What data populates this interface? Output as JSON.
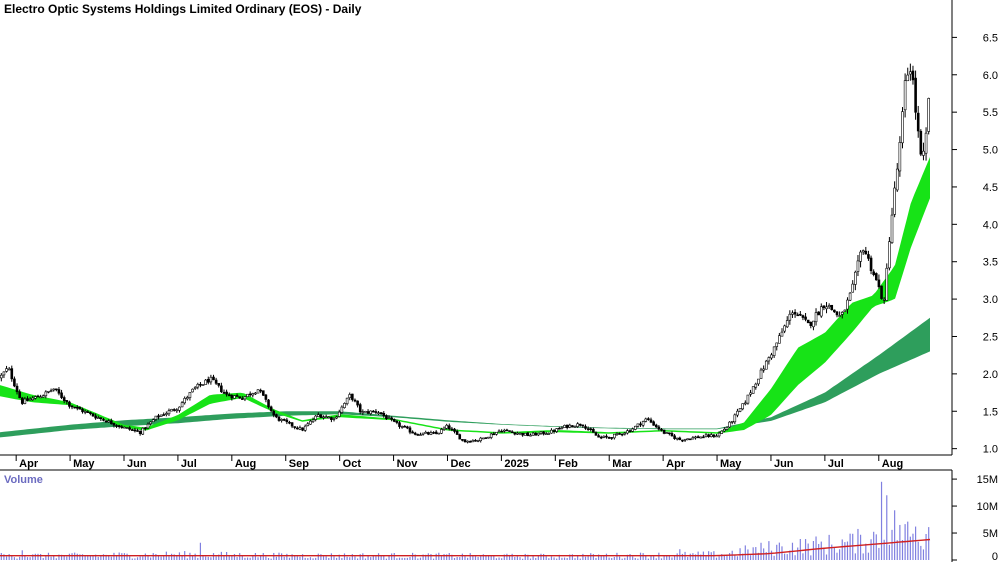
{
  "chart_data": [
    {
      "type": "candlestick",
      "title": "Electro Optic Systems Holdings Limited Ordinary (EOS) - Daily",
      "y_ticks": [
        "6.5",
        "6.0",
        "5.5",
        "5.0",
        "4.5",
        "4.0",
        "3.5",
        "3.0",
        "2.5",
        "2.0",
        "1.5",
        "1.0"
      ],
      "ylim": [
        0.9,
        6.85
      ],
      "x_ticks": [
        "Apr",
        "May",
        "Jun",
        "Jul",
        "Aug",
        "Sep",
        "Oct",
        "Nov",
        "Dec",
        "2025",
        "Feb",
        "Mar",
        "Apr",
        "May",
        "Jun",
        "Jul",
        "Aug"
      ],
      "x_tick_times": [
        0,
        1,
        2,
        3,
        4,
        5,
        6,
        7,
        8,
        9,
        10,
        11,
        12,
        13,
        14,
        15,
        16
      ],
      "xlim": [
        -0.3,
        16.95
      ],
      "price_keypoints": [
        [
          -0.3,
          1.95
        ],
        [
          -0.15,
          2.08
        ],
        [
          0.1,
          1.62
        ],
        [
          0.5,
          1.72
        ],
        [
          0.7,
          1.8
        ],
        [
          1.0,
          1.58
        ],
        [
          1.5,
          1.42
        ],
        [
          2.0,
          1.28
        ],
        [
          2.3,
          1.22
        ],
        [
          2.6,
          1.42
        ],
        [
          3.0,
          1.55
        ],
        [
          3.3,
          1.8
        ],
        [
          3.6,
          1.93
        ],
        [
          3.9,
          1.72
        ],
        [
          4.2,
          1.68
        ],
        [
          4.5,
          1.8
        ],
        [
          4.8,
          1.42
        ],
        [
          5.0,
          1.35
        ],
        [
          5.3,
          1.25
        ],
        [
          5.6,
          1.45
        ],
        [
          5.9,
          1.4
        ],
        [
          6.2,
          1.72
        ],
        [
          6.4,
          1.48
        ],
        [
          6.7,
          1.5
        ],
        [
          7.0,
          1.35
        ],
        [
          7.4,
          1.2
        ],
        [
          7.8,
          1.2
        ],
        [
          8.0,
          1.3
        ],
        [
          8.3,
          1.1
        ],
        [
          8.6,
          1.12
        ],
        [
          9.0,
          1.25
        ],
        [
          9.5,
          1.18
        ],
        [
          9.9,
          1.22
        ],
        [
          10.2,
          1.3
        ],
        [
          10.5,
          1.33
        ],
        [
          10.8,
          1.15
        ],
        [
          11.0,
          1.15
        ],
        [
          11.4,
          1.25
        ],
        [
          11.7,
          1.4
        ],
        [
          12.0,
          1.22
        ],
        [
          12.3,
          1.12
        ],
        [
          12.6,
          1.15
        ],
        [
          13.0,
          1.18
        ],
        [
          13.2,
          1.3
        ],
        [
          13.5,
          1.6
        ],
        [
          13.8,
          2.0
        ],
        [
          14.1,
          2.4
        ],
        [
          14.4,
          2.85
        ],
        [
          14.7,
          2.65
        ],
        [
          15.0,
          2.95
        ],
        [
          15.3,
          2.75
        ],
        [
          15.5,
          3.1
        ],
        [
          15.7,
          3.72
        ],
        [
          15.9,
          3.35
        ],
        [
          16.1,
          2.95
        ],
        [
          16.2,
          3.85
        ],
        [
          16.4,
          5.1
        ],
        [
          16.5,
          5.95
        ],
        [
          16.6,
          6.15
        ],
        [
          16.7,
          5.4
        ],
        [
          16.8,
          4.75
        ],
        [
          16.9,
          5.3
        ],
        [
          16.95,
          6.1
        ]
      ],
      "short_ema_band_keypoints": [
        [
          -0.3,
          1.85,
          1.7
        ],
        [
          0.3,
          1.72,
          1.62
        ],
        [
          1.0,
          1.62,
          1.58
        ],
        [
          2.0,
          1.32,
          1.28
        ],
        [
          2.4,
          1.28,
          1.24
        ],
        [
          3.0,
          1.45,
          1.38
        ],
        [
          3.6,
          1.72,
          1.6
        ],
        [
          4.2,
          1.75,
          1.68
        ],
        [
          4.8,
          1.52,
          1.48
        ],
        [
          5.3,
          1.38,
          1.36
        ],
        [
          6.0,
          1.46,
          1.42
        ],
        [
          7.0,
          1.4,
          1.38
        ],
        [
          8.0,
          1.26,
          1.24
        ],
        [
          9.0,
          1.22,
          1.2
        ],
        [
          10.0,
          1.25,
          1.22
        ],
        [
          11.0,
          1.22,
          1.2
        ],
        [
          12.0,
          1.25,
          1.23
        ],
        [
          13.0,
          1.22,
          1.2
        ],
        [
          13.5,
          1.35,
          1.25
        ],
        [
          14.0,
          1.8,
          1.45
        ],
        [
          14.5,
          2.35,
          1.85
        ],
        [
          15.0,
          2.55,
          2.15
        ],
        [
          15.5,
          2.95,
          2.55
        ],
        [
          15.9,
          3.05,
          2.9
        ],
        [
          16.3,
          3.45,
          3.0
        ],
        [
          16.6,
          4.3,
          3.7
        ],
        [
          16.95,
          4.9,
          4.35
        ]
      ],
      "long_ema_band_keypoints": [
        [
          -0.3,
          1.22,
          1.15
        ],
        [
          1.0,
          1.32,
          1.25
        ],
        [
          2.0,
          1.38,
          1.3
        ],
        [
          3.0,
          1.42,
          1.34
        ],
        [
          4.0,
          1.47,
          1.4
        ],
        [
          5.0,
          1.5,
          1.44
        ],
        [
          6.0,
          1.5,
          1.46
        ],
        [
          7.0,
          1.44,
          1.42
        ],
        [
          8.0,
          1.38,
          1.36
        ],
        [
          9.0,
          1.33,
          1.32
        ],
        [
          10.0,
          1.3,
          1.29
        ],
        [
          11.0,
          1.28,
          1.27
        ],
        [
          12.0,
          1.27,
          1.26
        ],
        [
          13.0,
          1.27,
          1.26
        ],
        [
          14.0,
          1.42,
          1.37
        ],
        [
          15.0,
          1.75,
          1.62
        ],
        [
          16.0,
          2.25,
          2.0
        ],
        [
          16.95,
          2.75,
          2.3
        ]
      ]
    },
    {
      "type": "bar",
      "title": "Volume",
      "y_ticks": [
        "15M",
        "10M",
        "5M",
        "0"
      ],
      "y_tick_values": [
        15,
        10,
        5,
        0
      ],
      "ylim": [
        0,
        16.5
      ],
      "volume_keypoints": [
        [
          -0.3,
          0.8
        ],
        [
          1.0,
          0.8
        ],
        [
          2.0,
          0.9
        ],
        [
          3.0,
          1.0
        ],
        [
          4.0,
          0.9
        ],
        [
          5.0,
          0.8
        ],
        [
          6.0,
          0.8
        ],
        [
          7.0,
          0.8
        ],
        [
          8.0,
          0.8
        ],
        [
          9.0,
          0.7
        ],
        [
          10.0,
          0.7
        ],
        [
          11.0,
          0.8
        ],
        [
          12.0,
          0.9
        ],
        [
          13.0,
          1.0
        ],
        [
          13.5,
          1.6
        ],
        [
          14.0,
          2.2
        ],
        [
          14.5,
          2.5
        ],
        [
          15.0,
          2.8
        ],
        [
          15.5,
          3.2
        ],
        [
          16.0,
          4.2
        ],
        [
          16.3,
          6.0
        ],
        [
          16.6,
          4.5
        ],
        [
          16.95,
          4.8
        ]
      ],
      "volume_spikes": [
        [
          16.05,
          14.5
        ],
        [
          16.15,
          12.0
        ],
        [
          16.4,
          6.5
        ],
        [
          16.7,
          6.2
        ],
        [
          16.95,
          6.1
        ],
        [
          12.3,
          2.0
        ],
        [
          3.4,
          3.2
        ],
        [
          0.1,
          1.8
        ]
      ],
      "average_keypoints": [
        [
          -0.3,
          0.8
        ],
        [
          13.0,
          0.8
        ],
        [
          14.0,
          1.2
        ],
        [
          15.0,
          2.2
        ],
        [
          16.0,
          3.0
        ],
        [
          16.95,
          3.8
        ]
      ]
    }
  ]
}
